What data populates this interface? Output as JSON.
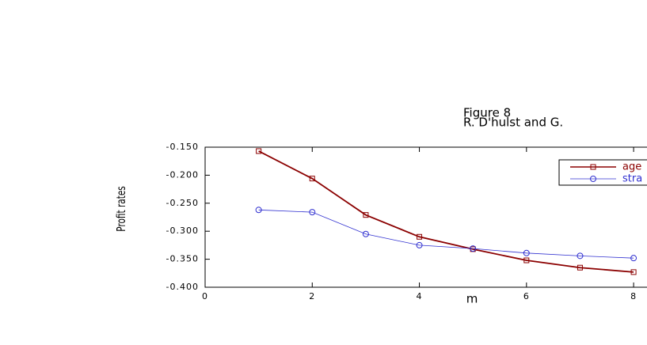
{
  "chart_data": {
    "type": "line",
    "title": "Figure 8",
    "subtitle": "R. D'hulst and G.",
    "x_label": "m",
    "y_label": "Profit rates",
    "x": [
      1,
      2,
      3,
      4,
      5,
      6,
      7,
      8
    ],
    "series": [
      {
        "name": "age",
        "color": "#8b0000",
        "marker": "square",
        "values": [
          -0.157,
          -0.206,
          -0.271,
          -0.31,
          -0.332,
          -0.352,
          -0.365,
          -0.373
        ]
      },
      {
        "name": "stra",
        "color": "#3030d0",
        "marker": "circle",
        "values": [
          -0.262,
          -0.266,
          -0.305,
          -0.325,
          -0.331,
          -0.339,
          -0.344,
          -0.348
        ]
      }
    ],
    "xlim": [
      0,
      8.25
    ],
    "ylim": [
      -0.4,
      -0.15
    ],
    "xticks": [
      0,
      2,
      4,
      6,
      8
    ],
    "yticks": [
      {
        "value": -0.4,
        "label": "-0.400"
      },
      {
        "value": -0.35,
        "label": "-0.350"
      },
      {
        "value": -0.3,
        "label": "-0.300"
      },
      {
        "value": -0.25,
        "label": "-0.250"
      },
      {
        "value": -0.2,
        "label": "-0.200"
      },
      {
        "value": -0.15,
        "label": "-0.150"
      }
    ],
    "legend": "upper right"
  }
}
